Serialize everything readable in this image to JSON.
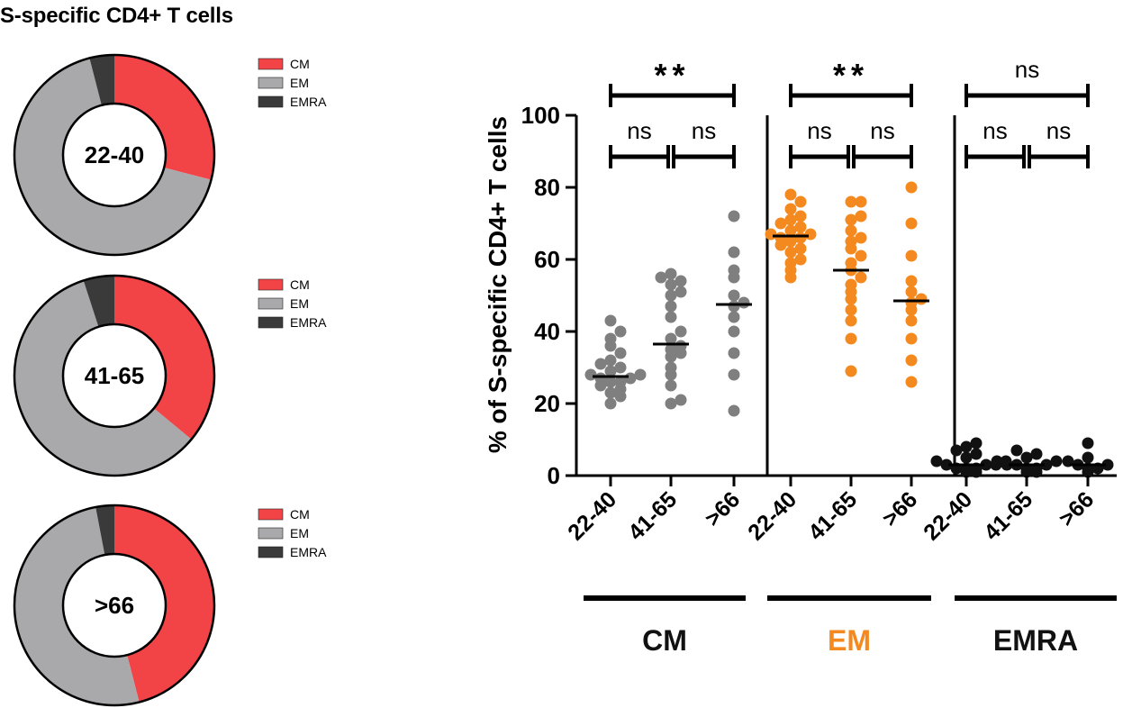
{
  "figure_title": "S-specific CD4+ T cells",
  "colors": {
    "cm": "#f24446",
    "em": "#a9a9ac",
    "emra": "#3a3a3a",
    "grey_points": "#7f7f7f",
    "orange": "#f48a1f",
    "black": "#111111"
  },
  "chart_data": [
    {
      "type": "pie",
      "title": "S-specific CD4+ T cells",
      "donuts": [
        {
          "center_label": "22-40",
          "slices": [
            {
              "label": "CM",
              "value": 29
            },
            {
              "label": "EM",
              "value": 67
            },
            {
              "label": "EMRA",
              "value": 4
            }
          ]
        },
        {
          "center_label": "41-65",
          "slices": [
            {
              "label": "CM",
              "value": 36
            },
            {
              "label": "EM",
              "value": 59
            },
            {
              "label": "EMRA",
              "value": 5
            }
          ]
        },
        {
          "center_label": ">66",
          "slices": [
            {
              "label": "CM",
              "value": 46
            },
            {
              "label": "EM",
              "value": 51
            },
            {
              "label": "EMRA",
              "value": 3
            }
          ]
        }
      ],
      "legend": [
        "CM",
        "EM",
        "EMRA"
      ]
    },
    {
      "type": "scatter",
      "ylabel": "% of S-specific CD4+ T cells",
      "ylim": [
        0,
        100
      ],
      "yticks": [
        0,
        20,
        40,
        60,
        80,
        100
      ],
      "groups": [
        {
          "name": "CM",
          "color_key": "grey_points",
          "label_color_key": "black",
          "categories": [
            "22-40",
            "41-65",
            ">66"
          ],
          "points": [
            [
              20,
              22,
              23,
              24,
              25,
              26,
              26,
              27,
              27,
              28,
              28,
              29,
              30,
              31,
              32,
              34,
              36,
              38,
              40,
              43
            ],
            [
              20,
              21,
              25,
              28,
              30,
              33,
              34,
              35,
              36,
              38,
              40,
              44,
              47,
              50,
              51,
              53,
              54,
              55,
              56
            ],
            [
              18,
              28,
              34,
              40,
              44,
              47,
              48,
              50,
              55,
              57,
              62,
              72
            ]
          ],
          "medians": [
            27.5,
            36.5,
            47.5
          ],
          "comparisons": [
            {
              "text": "ns",
              "pair": [
                0,
                1
              ]
            },
            {
              "text": "ns",
              "pair": [
                1,
                2
              ]
            },
            {
              "text": "**",
              "pair": [
                0,
                2
              ]
            }
          ]
        },
        {
          "name": "EM",
          "color_key": "orange",
          "label_color_key": "orange",
          "categories": [
            "22-40",
            "41-65",
            ">66"
          ],
          "points": [
            [
              55,
              57,
              59,
              60,
              62,
              63,
              64,
              65,
              66,
              66,
              67,
              67,
              68,
              69,
              70,
              71,
              72,
              74,
              76,
              78
            ],
            [
              29,
              38,
              43,
              46,
              49,
              51,
              53,
              55,
              57,
              59,
              61,
              63,
              65,
              66,
              68,
              71,
              72,
              76,
              76
            ],
            [
              26,
              32,
              38,
              43,
              46,
              48,
              49,
              51,
              54,
              61,
              70,
              80
            ]
          ],
          "medians": [
            66.5,
            57,
            48.5
          ],
          "comparisons": [
            {
              "text": "ns",
              "pair": [
                0,
                1
              ]
            },
            {
              "text": "ns",
              "pair": [
                1,
                2
              ]
            },
            {
              "text": "**",
              "pair": [
                0,
                2
              ]
            }
          ]
        },
        {
          "name": "EMRA",
          "color_key": "black",
          "label_color_key": "black",
          "categories": [
            "22-40",
            "41-65",
            ">66"
          ],
          "points": [
            [
              1,
              1,
              2,
              2,
              2,
              3,
              3,
              3,
              4,
              4,
              5,
              6,
              7,
              8,
              9
            ],
            [
              1,
              1,
              2,
              2,
              3,
              3,
              3,
              4,
              4,
              5,
              6,
              7
            ],
            [
              1,
              2,
              2,
              3,
              3,
              4,
              5,
              9
            ]
          ],
          "medians": [
            3,
            3,
            3
          ],
          "comparisons": [
            {
              "text": "ns",
              "pair": [
                0,
                1
              ]
            },
            {
              "text": "ns",
              "pair": [
                1,
                2
              ]
            },
            {
              "text": "ns",
              "pair": [
                0,
                2
              ]
            }
          ]
        }
      ]
    }
  ]
}
